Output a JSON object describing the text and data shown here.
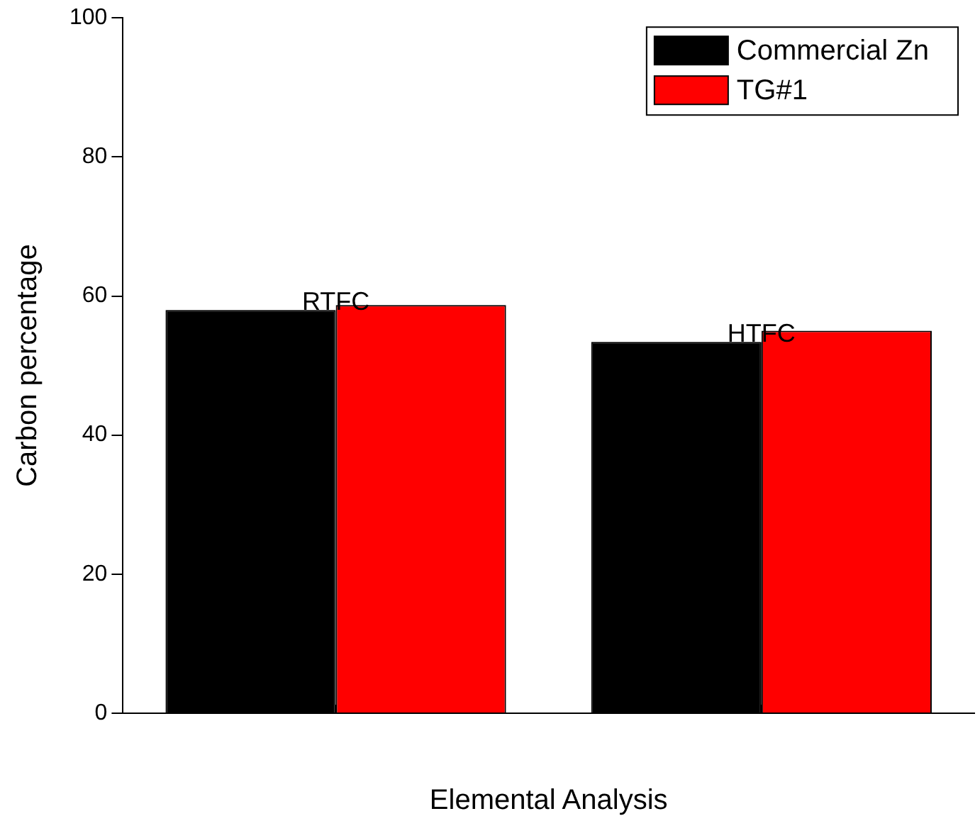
{
  "chart_data": {
    "type": "bar",
    "xlabel": "Elemental Analysis",
    "ylabel": "Carbon percentage",
    "categories": [
      "RTFC",
      "HTFC"
    ],
    "series": [
      {
        "name": "Commercial Zn",
        "color": "#000000",
        "values": [
          58,
          53.4
        ]
      },
      {
        "name": "TG#1",
        "color": "#ff0000",
        "values": [
          58.7,
          55
        ]
      }
    ],
    "ylim": [
      0,
      100
    ],
    "yticks": [
      0,
      20,
      40,
      60,
      80,
      100
    ],
    "grid": false,
    "legend": "top right"
  }
}
